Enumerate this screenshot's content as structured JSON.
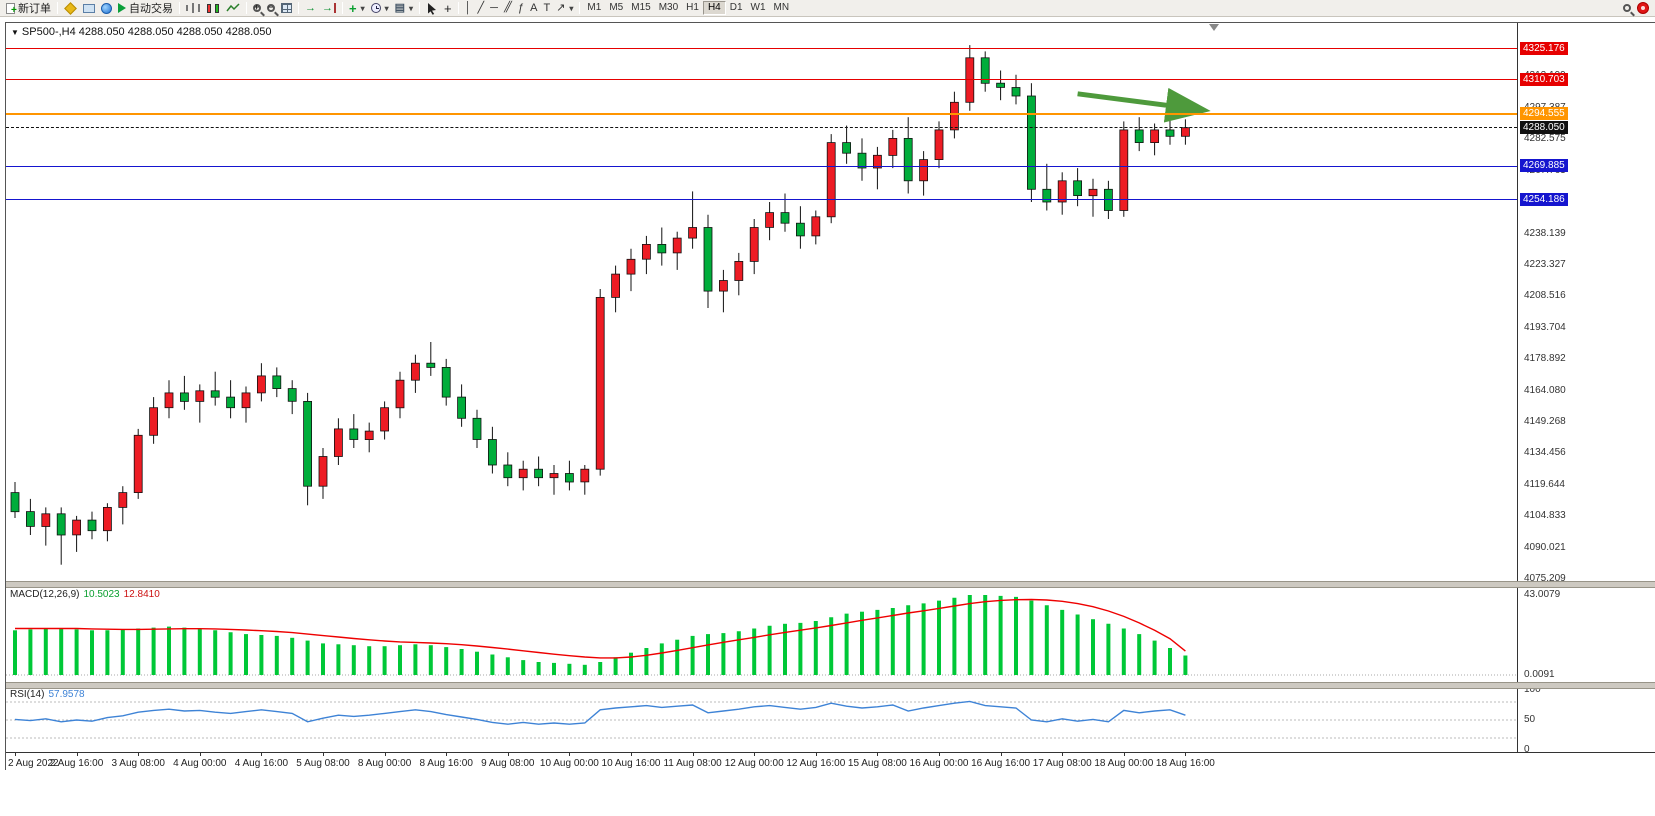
{
  "toolbar": {
    "items": [
      {
        "name": "new-order-button",
        "type": "button",
        "icon": "new-order",
        "label": "新订单"
      },
      {
        "type": "sep"
      },
      {
        "name": "metaeditor-icon",
        "type": "icon",
        "icon": "metaeditor"
      },
      {
        "name": "market-watch-icon",
        "type": "icon",
        "icon": "market-watch"
      },
      {
        "name": "mql5-community-icon",
        "type": "icon",
        "icon": "globe"
      },
      {
        "name": "autotrading-button",
        "type": "button",
        "icon": "autotrading",
        "label": "自动交易"
      },
      {
        "type": "sep"
      },
      {
        "name": "bar-chart-icon",
        "type": "icon",
        "icon": "bars"
      },
      {
        "name": "candlestick-chart-icon",
        "type": "icon",
        "icon": "candles"
      },
      {
        "name": "line-chart-icon",
        "type": "icon",
        "icon": "linechart"
      },
      {
        "type": "sep"
      },
      {
        "name": "zoom-in-icon",
        "type": "icon",
        "icon": "zoom-in"
      },
      {
        "name": "zoom-out-icon",
        "type": "icon",
        "icon": "zoom-out"
      },
      {
        "name": "tile-windows-icon",
        "type": "icon",
        "icon": "tile"
      },
      {
        "type": "sep"
      },
      {
        "name": "auto-scroll-icon",
        "type": "icon",
        "icon": "autoscroll"
      },
      {
        "name": "chart-shift-icon",
        "type": "icon",
        "icon": "chartshift"
      },
      {
        "type": "sep"
      },
      {
        "name": "indicators-icon",
        "type": "icon",
        "icon": "indicators",
        "caret": true
      },
      {
        "name": "periods-icon",
        "type": "icon",
        "icon": "clock",
        "caret": true
      },
      {
        "name": "templates-icon",
        "type": "icon",
        "icon": "template",
        "caret": true
      },
      {
        "type": "sep"
      },
      {
        "name": "cursor-icon",
        "type": "icon",
        "icon": "cursor"
      },
      {
        "name": "crosshair-icon",
        "type": "icon",
        "icon": "crosshair"
      },
      {
        "type": "sep"
      },
      {
        "name": "vertical-line-icon",
        "type": "icon",
        "icon": "vline"
      },
      {
        "name": "trendline-icon",
        "type": "icon",
        "icon": "trendline"
      },
      {
        "name": "horizontal-line-icon",
        "type": "icon",
        "icon": "hline"
      },
      {
        "name": "equidistant-channel-icon",
        "type": "icon",
        "icon": "channel"
      },
      {
        "name": "fibonacci-icon",
        "type": "icon",
        "icon": "fibo"
      },
      {
        "name": "text-icon",
        "type": "icon",
        "icon": "text-a"
      },
      {
        "name": "text-label-icon",
        "type": "icon",
        "icon": "text-t"
      },
      {
        "name": "arrows-icon",
        "type": "icon",
        "icon": "arrows",
        "caret": true
      },
      {
        "type": "sep"
      }
    ],
    "timeframes": [
      "M1",
      "M5",
      "M15",
      "M30",
      "H1",
      "H4",
      "D1",
      "W1",
      "MN"
    ],
    "active_timeframe": "H4",
    "right_items": [
      {
        "name": "search-icon",
        "icon": "search"
      },
      {
        "name": "alert-icon",
        "icon": "alert"
      }
    ]
  },
  "chart": {
    "symbol_tf": "SP500-,H4",
    "ohlc": "4288.050 4288.050 4288.050 4288.050"
  },
  "indicators": {
    "macd": {
      "label": "MACD(12,26,9)",
      "value_main": "10.5023",
      "value_signal": "12.8410",
      "axis_top": "43.0079",
      "axis_zero": "0.0091"
    },
    "rsi": {
      "label": "RSI(14)",
      "value": "57.9578",
      "axis_labels": [
        "100",
        "50",
        "0"
      ]
    }
  },
  "price_axis": {
    "gray_levels": [
      4312.199,
      4297.387,
      4282.575,
      4267.763,
      4252.951,
      4238.139,
      4223.327,
      4208.516,
      4193.704,
      4178.892,
      4164.08,
      4149.268,
      4134.456,
      4119.644,
      4104.833,
      4090.021,
      4075.209
    ]
  },
  "colors": {
    "bull": "#ed1c24",
    "bear": "#00ad3b",
    "wick": "#111111",
    "macd_hist": "#00c837",
    "macd_signal": "#ee0000",
    "rsi_line": "#3e83d6",
    "arrow": "#4e9a3c",
    "resistance_red": "#e60000",
    "pivot_orange": "#ff9500",
    "support_blue": "#1515cf",
    "current_price_black": "#111111"
  },
  "chart_data": {
    "type": "candlestick",
    "title": "SP500-,H4",
    "symbol": "SP500-",
    "timeframe": "H4",
    "current_price": 4288.05,
    "ylim": [
      4074.3,
      4337.4
    ],
    "candles": [
      [
        4116,
        4121,
        4104,
        4107
      ],
      [
        4107,
        4113,
        4096,
        4100
      ],
      [
        4100,
        4109,
        4091,
        4106
      ],
      [
        4106,
        4109,
        4082,
        4096
      ],
      [
        4096,
        4105,
        4088,
        4103
      ],
      [
        4103,
        4107,
        4094,
        4098
      ],
      [
        4098,
        4111,
        4093,
        4109
      ],
      [
        4109,
        4119,
        4101,
        4116
      ],
      [
        4116,
        4146,
        4113,
        4143
      ],
      [
        4143,
        4161,
        4139,
        4156
      ],
      [
        4156,
        4169,
        4151,
        4163
      ],
      [
        4163,
        4171,
        4155,
        4159
      ],
      [
        4159,
        4167,
        4149,
        4164
      ],
      [
        4164,
        4173,
        4157,
        4161
      ],
      [
        4161,
        4169,
        4151,
        4156
      ],
      [
        4156,
        4166,
        4149,
        4163
      ],
      [
        4163,
        4177,
        4159,
        4171
      ],
      [
        4171,
        4175,
        4161,
        4165
      ],
      [
        4165,
        4169,
        4153,
        4159
      ],
      [
        4159,
        4163,
        4110,
        4119
      ],
      [
        4119,
        4137,
        4113,
        4133
      ],
      [
        4133,
        4151,
        4129,
        4146
      ],
      [
        4146,
        4153,
        4137,
        4141
      ],
      [
        4141,
        4149,
        4135,
        4145
      ],
      [
        4145,
        4159,
        4141,
        4156
      ],
      [
        4156,
        4173,
        4151,
        4169
      ],
      [
        4169,
        4181,
        4163,
        4177
      ],
      [
        4177,
        4187,
        4171,
        4175
      ],
      [
        4175,
        4179,
        4157,
        4161
      ],
      [
        4161,
        4167,
        4147,
        4151
      ],
      [
        4151,
        4155,
        4137,
        4141
      ],
      [
        4141,
        4147,
        4125,
        4129
      ],
      [
        4129,
        4135,
        4119,
        4123
      ],
      [
        4123,
        4131,
        4117,
        4127
      ],
      [
        4127,
        4133,
        4119,
        4123
      ],
      [
        4123,
        4129,
        4115,
        4125
      ],
      [
        4125,
        4131,
        4117,
        4121
      ],
      [
        4121,
        4129,
        4115,
        4127
      ],
      [
        4127,
        4212,
        4124,
        4208
      ],
      [
        4208,
        4223,
        4201,
        4219
      ],
      [
        4219,
        4231,
        4211,
        4226
      ],
      [
        4226,
        4237,
        4219,
        4233
      ],
      [
        4233,
        4241,
        4223,
        4229
      ],
      [
        4229,
        4239,
        4221,
        4236
      ],
      [
        4236,
        4258,
        4231,
        4241
      ],
      [
        4241,
        4247,
        4203,
        4211
      ],
      [
        4211,
        4221,
        4201,
        4216
      ],
      [
        4216,
        4229,
        4209,
        4225
      ],
      [
        4225,
        4245,
        4219,
        4241
      ],
      [
        4241,
        4253,
        4235,
        4248
      ],
      [
        4248,
        4257,
        4239,
        4243
      ],
      [
        4243,
        4251,
        4231,
        4237
      ],
      [
        4237,
        4249,
        4233,
        4246
      ],
      [
        4246,
        4285,
        4243,
        4281
      ],
      [
        4281,
        4289,
        4271,
        4276
      ],
      [
        4276,
        4283,
        4263,
        4269
      ],
      [
        4269,
        4279,
        4259,
        4275
      ],
      [
        4275,
        4287,
        4269,
        4283
      ],
      [
        4283,
        4293,
        4257,
        4263
      ],
      [
        4263,
        4277,
        4256,
        4273
      ],
      [
        4273,
        4291,
        4269,
        4287
      ],
      [
        4287,
        4305,
        4283,
        4300
      ],
      [
        4300,
        4327,
        4296,
        4321
      ],
      [
        4321,
        4324,
        4305,
        4309
      ],
      [
        4309,
        4315,
        4301,
        4307
      ],
      [
        4307,
        4313,
        4299,
        4303
      ],
      [
        4303,
        4309,
        4253,
        4259
      ],
      [
        4259,
        4271,
        4249,
        4253
      ],
      [
        4253,
        4267,
        4247,
        4263
      ],
      [
        4263,
        4269,
        4251,
        4256
      ],
      [
        4256,
        4264,
        4246,
        4259
      ],
      [
        4259,
        4263,
        4245,
        4249
      ],
      [
        4249,
        4291,
        4246,
        4287
      ],
      [
        4287,
        4293,
        4277,
        4281
      ],
      [
        4281,
        4290,
        4275,
        4287
      ],
      [
        4287,
        4294,
        4280,
        4284
      ],
      [
        4284,
        4292,
        4280,
        4288.05
      ]
    ],
    "hlines": [
      {
        "name": "resistance-line-upper",
        "price": 4325.176,
        "label": "4325.176",
        "color": "#e60000",
        "fg": "#ffffff",
        "style": "solid",
        "width": 1
      },
      {
        "name": "resistance-line-lower",
        "price": 4310.703,
        "label": "4310.703",
        "color": "#e60000",
        "fg": "#ffffff",
        "style": "solid",
        "width": 1
      },
      {
        "name": "pivot-line",
        "price": 4294.555,
        "label": "4294.555",
        "color": "#ff9500",
        "fg": "#ffffff",
        "style": "solid",
        "width": 2
      },
      {
        "name": "current-price-line",
        "price": 4288.05,
        "label": "4288.050",
        "color": "#111111",
        "fg": "#ffffff",
        "style": "dashed",
        "width": 1
      },
      {
        "name": "support-line-upper",
        "price": 4269.885,
        "label": "4269.885",
        "color": "#1515cf",
        "fg": "#ffffff",
        "style": "solid",
        "width": 1
      },
      {
        "name": "support-line-lower",
        "price": 4254.186,
        "label": "4254.186",
        "color": "#1515cf",
        "fg": "#ffffff",
        "style": "solid",
        "width": 1
      }
    ],
    "annotation_arrow": {
      "type": "arrow",
      "color": "#4e9a3c",
      "from_bar": 69,
      "from_price": 4304,
      "to_bar": 77,
      "to_price": 4296.5
    },
    "macd": {
      "params": "12,26,9",
      "current_main": 10.5023,
      "current_signal": 12.841,
      "axis_max": 43.0079,
      "axis_min": 0.0091,
      "hist": [
        24,
        24.5,
        25,
        25,
        24.5,
        24,
        24,
        24.5,
        25,
        25.5,
        26,
        25.5,
        25,
        24,
        23,
        22,
        21.5,
        21,
        20,
        18.5,
        17,
        16.5,
        16,
        15.5,
        15.5,
        16,
        16.5,
        16,
        15,
        14,
        12.5,
        11,
        9.5,
        8,
        7,
        6.5,
        6,
        5.5,
        7,
        9.5,
        12,
        14.5,
        17,
        19,
        21,
        22,
        22.5,
        23.5,
        25,
        26.5,
        27.5,
        28,
        29,
        31,
        33,
        34,
        35,
        36,
        37.5,
        38.5,
        40,
        41.5,
        43,
        43,
        42.5,
        42,
        40,
        37.5,
        35,
        32.5,
        30,
        27.5,
        25,
        22,
        18.5,
        14.5,
        10.5
      ],
      "signal": [
        25,
        25,
        25,
        25,
        25,
        24.8,
        24.6,
        24.5,
        24.5,
        24.6,
        24.8,
        24.9,
        24.9,
        24.8,
        24.5,
        24.2,
        23.8,
        23.4,
        22.8,
        22,
        21.2,
        20.4,
        19.6,
        18.9,
        18.3,
        17.8,
        17.5,
        17.2,
        16.8,
        16.3,
        15.6,
        14.8,
        13.9,
        13,
        12.1,
        11.2,
        10.4,
        9.7,
        9.2,
        9.2,
        9.7,
        10.6,
        11.8,
        13.2,
        14.7,
        16.2,
        17.6,
        18.9,
        20.2,
        21.6,
        22.9,
        24.1,
        25.3,
        26.6,
        28,
        29.4,
        30.7,
        32,
        33.3,
        34.5,
        35.8,
        37.1,
        38.4,
        39.4,
        40.1,
        40.5,
        40.6,
        40.3,
        39.6,
        38.4,
        36.7,
        34.4,
        31.5,
        28,
        24,
        19.5,
        12.84
      ]
    },
    "rsi": {
      "period": 14,
      "current": 57.9578,
      "levels": [
        80,
        50,
        20
      ],
      "range": [
        0,
        100
      ],
      "values": [
        51,
        49,
        52,
        47,
        50,
        48,
        54,
        57,
        63,
        66,
        68,
        65,
        66,
        63,
        61,
        64,
        67,
        64,
        61,
        47,
        53,
        58,
        56,
        58,
        61,
        64,
        67,
        64,
        59,
        55,
        51,
        46,
        43,
        46,
        43,
        45,
        43,
        45,
        67,
        70,
        72,
        74,
        71,
        73,
        75,
        62,
        65,
        68,
        72,
        74,
        71,
        68,
        71,
        78,
        73,
        70,
        72,
        75,
        65,
        70,
        74,
        78,
        81,
        74,
        72,
        70,
        50,
        47,
        52,
        48,
        51,
        47,
        66,
        62,
        65,
        67,
        58
      ]
    },
    "x_labels": [
      "2 Aug 2022",
      "2 Aug 16:00",
      "3 Aug 08:00",
      "4 Aug 00:00",
      "4 Aug 16:00",
      "5 Aug 08:00",
      "8 Aug 00:00",
      "8 Aug 16:00",
      "9 Aug 08:00",
      "10 Aug 00:00",
      "10 Aug 16:00",
      "11 Aug 08:00",
      "12 Aug 00:00",
      "12 Aug 16:00",
      "15 Aug 08:00",
      "16 Aug 00:00",
      "16 Aug 16:00",
      "17 Aug 08:00",
      "18 Aug 00:00",
      "18 Aug 16:00"
    ]
  }
}
